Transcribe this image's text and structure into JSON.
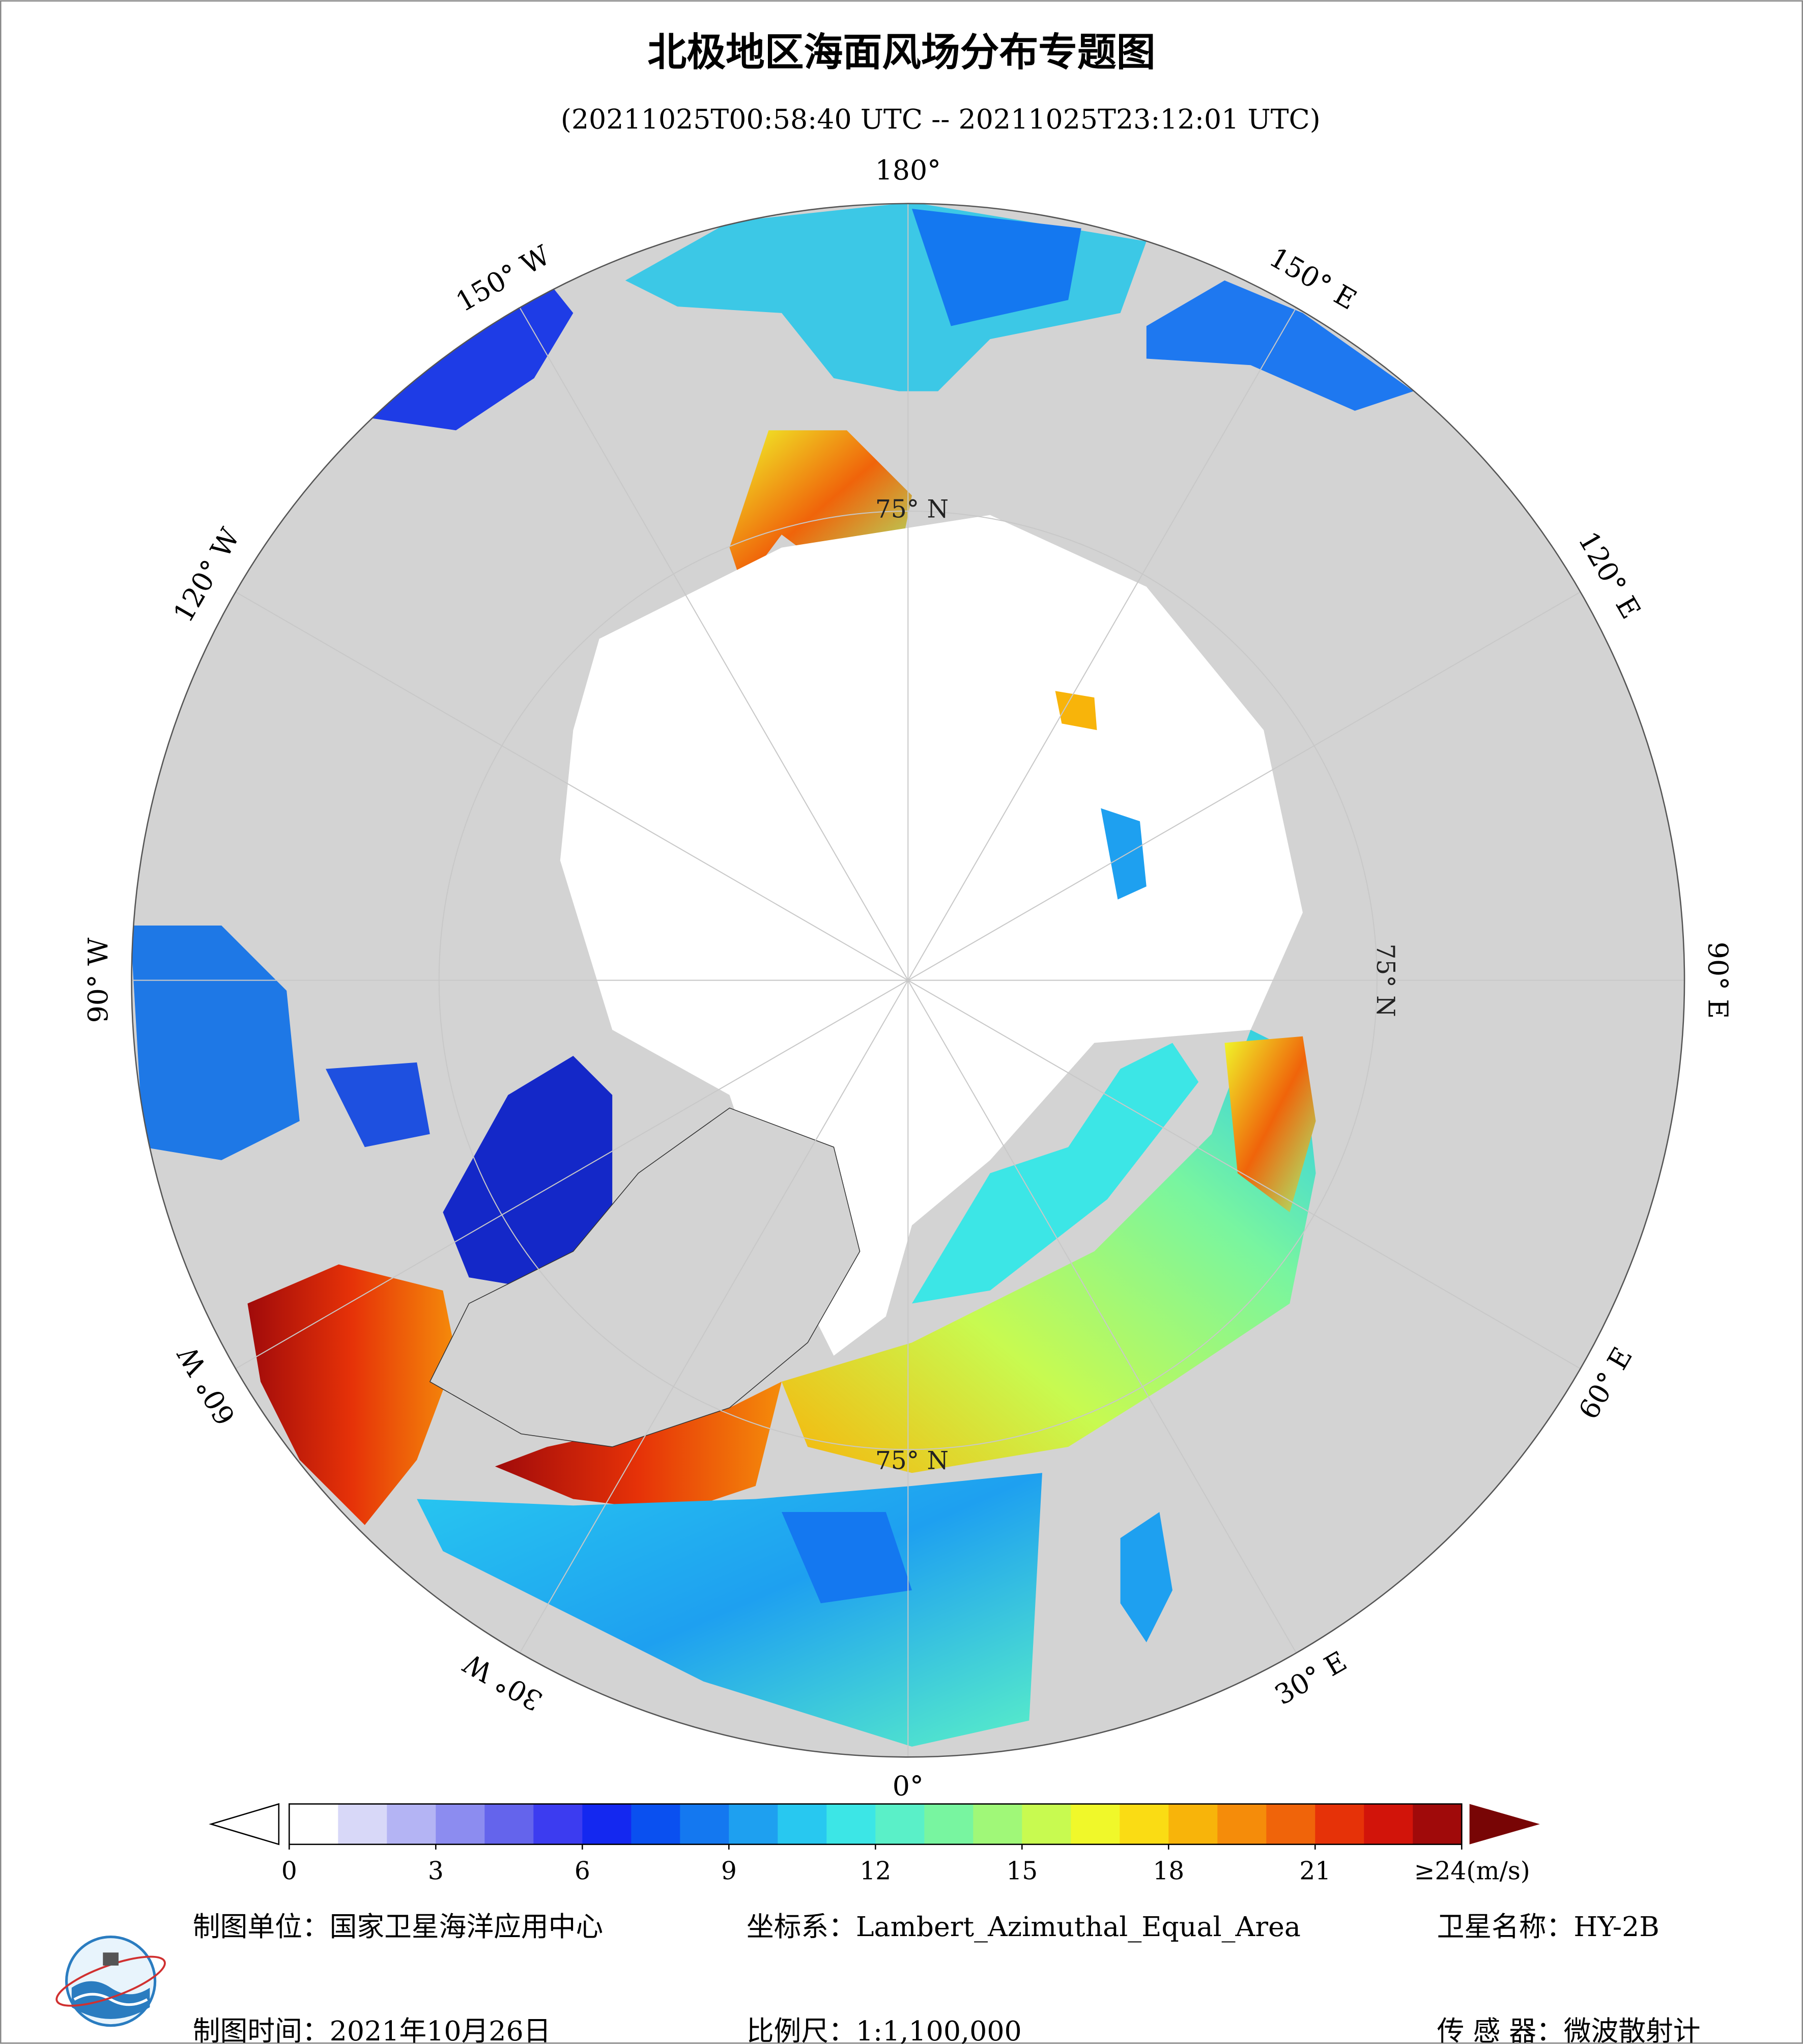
{
  "title": "北极地区海面风场分布专题图",
  "subtitle": "(20211025T00:58:40 UTC -- 20211025T23:12:01 UTC)",
  "map": {
    "longitude_labels": [
      "180°",
      "150° E",
      "120° E",
      "90° E",
      "60° E",
      "30° E",
      "0°",
      "30° W",
      "60° W",
      "90° W",
      "120° W",
      "150° W"
    ],
    "latitude_labels": [
      "75° N",
      "75° N",
      "75° N"
    ]
  },
  "colorbar": {
    "range": [
      0,
      24
    ],
    "ticks": [
      0,
      3,
      6,
      9,
      12,
      15,
      18,
      21,
      {
        "value": 24,
        "label": "≥24(m/s)"
      }
    ],
    "colors": [
      "#ffffff",
      "#d8d8f8",
      "#b4b4f4",
      "#8c8cf0",
      "#6464ec",
      "#3c3cf0",
      "#1428f0",
      "#0a50f0",
      "#1478f0",
      "#1ea0f0",
      "#28c8f0",
      "#3ce6e6",
      "#5af0c8",
      "#78f5a0",
      "#a0f878",
      "#c8fa50",
      "#f0f82a",
      "#fadc14",
      "#f8b40a",
      "#f58c0a",
      "#f0640a",
      "#e63208",
      "#d2140a",
      "#a00a0a",
      "#780505"
    ]
  },
  "footer": {
    "unit": "制图单位：国家卫星海洋应用中心",
    "projection": "坐标系：Lambert_Azimuthal_Equal_Area",
    "satellite": "卫星名称：HY-2B",
    "date": "制图时间：2021年10月26日",
    "scale": "比例尺：1:1,100,000",
    "sensor": "传 感 器：微波散射计"
  }
}
